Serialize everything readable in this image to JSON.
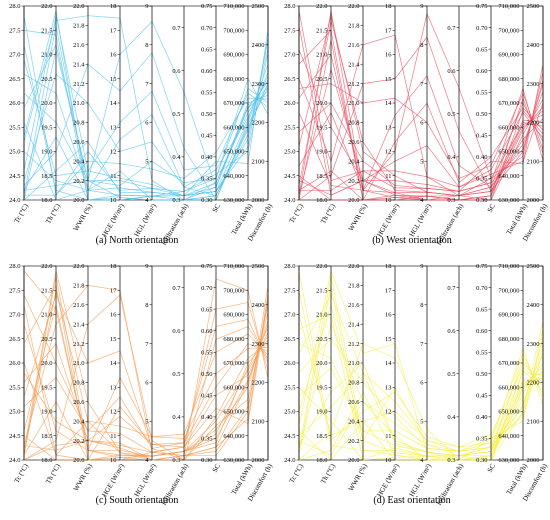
{
  "axes": [
    {
      "label": "Tc (°C)",
      "min": 24.0,
      "max": 28.0,
      "ticks": [
        "24.0",
        "24.5",
        "25.0",
        "25.5",
        "26.0",
        "26.5",
        "27.0",
        "27.5",
        "28.0"
      ]
    },
    {
      "label": "Th (°C)",
      "min": 18.0,
      "max": 22.0,
      "ticks": [
        "18.0",
        "18.5",
        "19.0",
        "19.5",
        "20.0",
        "20.5",
        "21.0",
        "21.5",
        "22.0"
      ]
    },
    {
      "label": "WWR (%)",
      "min": 20.0,
      "max": 22.0,
      "ticks": [
        "20.0",
        "20.2",
        "20.4",
        "20.6",
        "20.8",
        "21.0",
        "21.2",
        "21.4",
        "21.6",
        "21.8",
        "22.0"
      ]
    },
    {
      "label": "HGE (W/m²)",
      "min": 10,
      "max": 18,
      "ticks": [
        "10",
        "11",
        "12",
        "13",
        "14",
        "15",
        "16",
        "17",
        "18"
      ]
    },
    {
      "label": "HGL (W/m²)",
      "min": 4,
      "max": 9,
      "ticks": [
        "4",
        "5",
        "6",
        "7",
        "8",
        "9"
      ]
    },
    {
      "label": "Infiltration (ach)",
      "min": 0.3,
      "max": 0.75,
      "ticks": [
        "0.3",
        "0.4",
        "0.5",
        "0.6",
        "0.7"
      ]
    },
    {
      "label": "SC",
      "min": 0.3,
      "max": 0.75,
      "ticks": [
        "0.30",
        "0.35",
        "0.40",
        "0.45",
        "0.50",
        "0.55",
        "0.60",
        "0.65",
        "0.70",
        "0.75"
      ]
    },
    {
      "label": "Total (kWh)",
      "min": 630000,
      "max": 710000,
      "ticks": [
        "630,000",
        "640,000",
        "650,000",
        "660,000",
        "670,000",
        "680,000",
        "690,000",
        "700,000",
        "710,000"
      ]
    },
    {
      "label": "Discomfort (h)",
      "min": 2000,
      "max": 2500,
      "ticks": [
        "2000",
        "2100",
        "2200",
        "2300",
        "2400",
        "2500"
      ]
    }
  ],
  "chart_data": [
    {
      "type": "parallel-coordinates",
      "caption": "(a) North orientation",
      "color": "#56c3ee",
      "lines": [
        [
          24.1,
          21.6,
          20.1,
          10.2,
          4.1,
          0.31,
          0.33,
          668000,
          2305
        ],
        [
          24.2,
          18.3,
          20.2,
          10.8,
          4.3,
          0.32,
          0.36,
          650000,
          2380
        ],
        [
          25.3,
          21.9,
          20.0,
          10.1,
          4.0,
          0.3,
          0.31,
          660000,
          2290
        ],
        [
          27.8,
          18.1,
          20.4,
          11.5,
          4.8,
          0.35,
          0.41,
          672000,
          2260
        ],
        [
          26.6,
          20.2,
          20.1,
          12.5,
          6.2,
          0.33,
          0.37,
          664000,
          2320
        ],
        [
          24.0,
          18.6,
          20.6,
          10.3,
          4.2,
          0.31,
          0.32,
          655000,
          2410
        ],
        [
          25.9,
          21.2,
          20.2,
          10.6,
          5.0,
          0.34,
          0.35,
          676000,
          2250
        ],
        [
          24.3,
          19.0,
          21.4,
          14.5,
          7.8,
          0.42,
          0.3,
          662000,
          2330
        ],
        [
          27.2,
          18.2,
          20.0,
          10.0,
          4.1,
          0.3,
          0.34,
          668000,
          2280
        ],
        [
          24.6,
          21.8,
          20.3,
          10.9,
          4.4,
          0.31,
          0.39,
          645000,
          2440
        ],
        [
          25.0,
          18.4,
          20.1,
          11.2,
          4.0,
          0.3,
          0.31,
          659000,
          2300
        ],
        [
          26.2,
          19.6,
          20.2,
          16.0,
          8.6,
          0.55,
          0.33,
          670000,
          2270
        ],
        [
          24.1,
          18.1,
          20.5,
          10.4,
          4.3,
          0.31,
          0.32,
          663000,
          2350
        ],
        [
          27.5,
          21.4,
          20.0,
          10.2,
          4.1,
          0.32,
          0.35,
          680000,
          2220
        ],
        [
          24.4,
          20.6,
          21.0,
          12.0,
          5.5,
          0.33,
          0.31,
          657000,
          2390
        ],
        [
          25.6,
          18.0,
          20.1,
          10.5,
          4.2,
          0.31,
          0.34,
          666000,
          2310
        ],
        [
          24.0,
          21.1,
          20.2,
          10.1,
          4.0,
          0.3,
          0.3,
          661000,
          2300
        ],
        [
          26.9,
          18.5,
          20.3,
          13.2,
          6.8,
          0.37,
          0.38,
          674000,
          2240
        ],
        [
          24.2,
          19.3,
          20.0,
          10.0,
          4.1,
          0.31,
          0.32,
          652000,
          2420
        ],
        [
          25.2,
          21.7,
          21.9,
          17.5,
          4.5,
          0.3,
          0.33,
          669000,
          2290
        ]
      ]
    },
    {
      "type": "parallel-coordinates",
      "caption": "(b) West orientation",
      "color": "#ea4d5f",
      "lines": [
        [
          24.1,
          21.9,
          20.1,
          10.3,
          4.2,
          0.31,
          0.33,
          655000,
          2210
        ],
        [
          24.2,
          18.2,
          20.3,
          11.2,
          4.6,
          0.33,
          0.36,
          646000,
          2250
        ],
        [
          27.6,
          18.1,
          20.2,
          10.2,
          4.1,
          0.3,
          0.31,
          662000,
          2190
        ],
        [
          26.8,
          21.5,
          20.0,
          12.4,
          6.5,
          0.34,
          0.4,
          668000,
          2180
        ],
        [
          25.4,
          20.0,
          20.4,
          10.6,
          4.3,
          0.32,
          0.34,
          651000,
          2300
        ],
        [
          24.0,
          18.5,
          21.2,
          15.0,
          8.2,
          0.46,
          0.32,
          660000,
          2230
        ],
        [
          26.1,
          21.0,
          20.1,
          10.1,
          4.0,
          0.3,
          0.31,
          672000,
          2120
        ],
        [
          24.5,
          18.0,
          20.0,
          10.0,
          4.1,
          0.31,
          0.35,
          648000,
          2330
        ],
        [
          27.1,
          19.5,
          20.2,
          11.6,
          5.4,
          0.33,
          0.37,
          666000,
          2160
        ],
        [
          24.3,
          21.7,
          20.6,
          10.4,
          4.2,
          0.31,
          0.3,
          657000,
          2260
        ],
        [
          25.8,
          18.3,
          20.1,
          13.5,
          7.2,
          0.38,
          0.33,
          670000,
          2150
        ],
        [
          24.1,
          20.7,
          20.2,
          10.8,
          4.4,
          0.32,
          0.39,
          645000,
          2350
        ],
        [
          26.5,
          18.8,
          21.6,
          16.8,
          4.6,
          0.31,
          0.32,
          663000,
          2200
        ],
        [
          24.0,
          21.3,
          20.0,
          10.2,
          4.0,
          0.3,
          0.31,
          659000,
          2240
        ],
        [
          27.9,
          18.4,
          20.3,
          10.5,
          4.3,
          0.32,
          0.34,
          676000,
          2100
        ],
        [
          24.7,
          19.8,
          20.1,
          12.0,
          8.8,
          0.56,
          0.35,
          661000,
          2220
        ],
        [
          25.1,
          21.8,
          20.5,
          11.0,
          4.2,
          0.31,
          0.33,
          653000,
          2280
        ],
        [
          24.2,
          18.6,
          20.0,
          10.1,
          4.1,
          0.3,
          0.3,
          667000,
          2170
        ],
        [
          26.3,
          20.4,
          21.0,
          14.2,
          6.0,
          0.35,
          0.38,
          674000,
          2130
        ],
        [
          24.4,
          18.1,
          20.2,
          10.3,
          4.0,
          0.31,
          0.32,
          650000,
          2310
        ]
      ]
    },
    {
      "type": "parallel-coordinates",
      "caption": "(c) South orientation",
      "color": "#f59b52",
      "lines": [
        [
          24.1,
          21.8,
          20.1,
          10.2,
          4.1,
          0.32,
          0.36,
          668000,
          2340
        ],
        [
          24.3,
          18.2,
          20.2,
          10.6,
          4.2,
          0.33,
          0.42,
          645000,
          2420
        ],
        [
          27.2,
          18.1,
          20.4,
          11.4,
          4.6,
          0.35,
          0.5,
          676000,
          2290
        ],
        [
          26.4,
          21.6,
          20.0,
          10.1,
          4.0,
          0.31,
          0.33,
          662000,
          2360
        ],
        [
          25.1,
          19.7,
          20.3,
          12.6,
          4.3,
          0.34,
          0.61,
          688000,
          2250
        ],
        [
          24.0,
          18.4,
          21.4,
          16.8,
          4.5,
          0.3,
          0.38,
          655000,
          2400
        ],
        [
          27.9,
          21.1,
          20.1,
          10.4,
          4.1,
          0.32,
          0.34,
          670000,
          2310
        ],
        [
          24.5,
          18.0,
          20.0,
          10.0,
          4.2,
          0.31,
          0.72,
          700000,
          2210
        ],
        [
          25.6,
          20.4,
          20.2,
          11.8,
          4.4,
          0.33,
          0.45,
          665000,
          2330
        ],
        [
          24.2,
          21.9,
          20.6,
          10.3,
          4.0,
          0.31,
          0.31,
          650000,
          2450
        ],
        [
          26.8,
          18.6,
          20.1,
          13.4,
          4.6,
          0.36,
          0.55,
          682000,
          2270
        ],
        [
          24.1,
          19.2,
          20.0,
          10.2,
          4.1,
          0.32,
          0.37,
          660000,
          2380
        ],
        [
          25.3,
          21.4,
          21.0,
          14.5,
          4.3,
          0.3,
          0.4,
          672000,
          2300
        ],
        [
          24.0,
          18.3,
          20.2,
          10.5,
          4.0,
          0.31,
          0.33,
          647000,
          2430
        ],
        [
          27.4,
          20.0,
          20.3,
          11.1,
          4.2,
          0.33,
          0.65,
          695000,
          2230
        ],
        [
          24.6,
          21.2,
          20.1,
          10.1,
          4.1,
          0.32,
          0.35,
          663000,
          2350
        ],
        [
          26.0,
          18.1,
          20.0,
          12.2,
          4.4,
          0.34,
          0.47,
          678000,
          2280
        ],
        [
          24.3,
          20.8,
          21.8,
          17.0,
          4.2,
          0.31,
          0.32,
          652000,
          2410
        ],
        [
          25.8,
          18.8,
          20.2,
          10.7,
          4.0,
          0.3,
          0.58,
          685000,
          2260
        ],
        [
          24.1,
          21.5,
          20.4,
          10.3,
          4.1,
          0.32,
          0.39,
          667000,
          2320
        ]
      ]
    },
    {
      "type": "parallel-coordinates",
      "caption": "(d) East orientation",
      "color": "#f5ef4a",
      "lines": [
        [
          24.2,
          21.8,
          20.2,
          10.3,
          4.1,
          0.31,
          0.32,
          655000,
          2230
        ],
        [
          24.4,
          18.1,
          20.6,
          11.5,
          4.4,
          0.32,
          0.34,
          648000,
          2280
        ],
        [
          27.5,
          18.3,
          20.1,
          10.2,
          4.0,
          0.3,
          0.31,
          662000,
          2210
        ],
        [
          26.2,
          21.4,
          20.9,
          12.4,
          4.5,
          0.33,
          0.36,
          668000,
          2200
        ],
        [
          25.3,
          19.9,
          20.3,
          10.6,
          4.2,
          0.31,
          0.33,
          652000,
          2310
        ],
        [
          24.0,
          18.6,
          21.2,
          14.2,
          4.8,
          0.3,
          0.3,
          660000,
          2240
        ],
        [
          26.7,
          21.0,
          20.0,
          10.1,
          4.1,
          0.31,
          0.32,
          672000,
          2170
        ],
        [
          24.6,
          18.0,
          20.4,
          10.0,
          4.0,
          0.3,
          0.35,
          646000,
          2340
        ],
        [
          25.8,
          20.5,
          20.8,
          11.8,
          4.3,
          0.32,
          0.33,
          666000,
          2220
        ],
        [
          24.1,
          21.6,
          20.1,
          10.4,
          4.1,
          0.31,
          0.31,
          657000,
          2270
        ],
        [
          27.9,
          18.4,
          20.5,
          12.8,
          4.6,
          0.33,
          0.34,
          676000,
          2140
        ],
        [
          24.3,
          19.4,
          21.0,
          10.8,
          4.2,
          0.3,
          0.3,
          650000,
          2360
        ],
        [
          25.0,
          21.2,
          20.2,
          13.0,
          4.4,
          0.31,
          0.32,
          663000,
          2210
        ],
        [
          24.0,
          18.2,
          20.7,
          10.2,
          4.0,
          0.3,
          0.31,
          659000,
          2250
        ],
        [
          26.4,
          20.1,
          20.3,
          11.2,
          4.3,
          0.32,
          0.33,
          670000,
          2190
        ],
        [
          24.7,
          21.9,
          21.1,
          14.8,
          4.2,
          0.31,
          0.32,
          661000,
          2230
        ],
        [
          25.5,
          18.8,
          20.0,
          10.5,
          4.1,
          0.3,
          0.31,
          653000,
          2290
        ],
        [
          24.2,
          20.8,
          20.6,
          11.0,
          4.0,
          0.31,
          0.3,
          667000,
          2180
        ],
        [
          27.0,
          18.5,
          20.4,
          12.0,
          4.5,
          0.32,
          0.35,
          674000,
          2160
        ],
        [
          24.5,
          19.1,
          20.9,
          10.7,
          4.2,
          0.31,
          0.33,
          649000,
          2320
        ]
      ]
    }
  ]
}
